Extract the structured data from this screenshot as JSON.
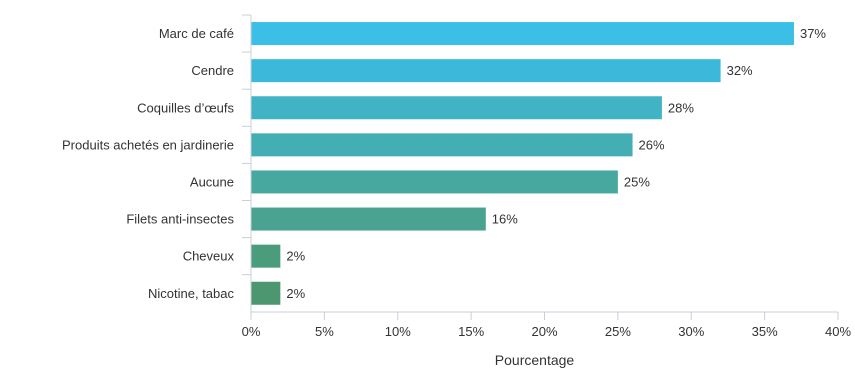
{
  "chart_data": {
    "type": "bar",
    "orientation": "horizontal",
    "categories": [
      "Marc de café",
      "Cendre",
      "Coquilles d’œufs",
      "Produits achetés en jardinerie",
      "Aucune",
      "Filets anti-insectes",
      "Cheveux",
      "Nicotine, tabac"
    ],
    "values": [
      37,
      32,
      28,
      26,
      25,
      16,
      2,
      2
    ],
    "value_labels": [
      "37%",
      "32%",
      "28%",
      "26%",
      "25%",
      "16%",
      "2%",
      "2%"
    ],
    "bar_colors": [
      "#3bbfe6",
      "#3cb9da",
      "#40b4c5",
      "#44aeb5",
      "#47a8a0",
      "#4aa290",
      "#4b9c7c",
      "#4c9770"
    ],
    "xlabel": "Pourcentage",
    "ylabel": "",
    "xlim": [
      0,
      40
    ],
    "x_ticks": [
      0,
      5,
      10,
      15,
      20,
      25,
      30,
      35,
      40
    ],
    "x_tick_labels": [
      "0%",
      "5%",
      "10%",
      "15%",
      "20%",
      "25%",
      "30%",
      "35%",
      "40%"
    ],
    "grid": false
  }
}
